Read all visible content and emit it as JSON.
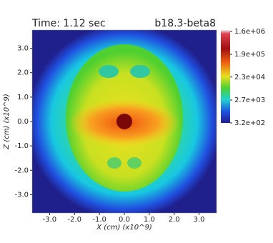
{
  "chart_data": {
    "type": "heatmap",
    "title": "Time: 1.12 sec",
    "subtitle": "b18.3-beta8",
    "x_label": "X (cm) (x10^9)",
    "y_label": "Z (cm) (x10^9)",
    "xlim": [
      -3.7,
      3.7
    ],
    "ylim": [
      -3.75,
      3.75
    ],
    "xticks": [
      {
        "value": -3,
        "label": "-3.0"
      },
      {
        "value": -2,
        "label": "-2.0"
      },
      {
        "value": -1,
        "label": "-1.0"
      },
      {
        "value": 0,
        "label": "0.0"
      },
      {
        "value": 1,
        "label": "1.0"
      },
      {
        "value": 2,
        "label": "2.0"
      },
      {
        "value": 3,
        "label": "3.0"
      }
    ],
    "yticks": [
      {
        "value": -3,
        "label": "-3.0"
      },
      {
        "value": -2,
        "label": "-2.0"
      },
      {
        "value": -1,
        "label": "-1.0"
      },
      {
        "value": 0,
        "label": "0.0"
      },
      {
        "value": 1,
        "label": "1.0"
      },
      {
        "value": 2,
        "label": "2.0"
      },
      {
        "value": 3,
        "label": "3.0"
      }
    ],
    "colorbar_lim": [
      320,
      1600000
    ],
    "colorbar_scale": "log",
    "colorbar_ticks": [
      {
        "value": 1600000,
        "label": "1.6e+06"
      },
      {
        "value": 190000,
        "label": "1.9e+05"
      },
      {
        "value": 23000,
        "label": "2.3e+04"
      },
      {
        "value": 2700,
        "label": "2.7e+03"
      },
      {
        "value": 320,
        "label": "3.2e+02"
      }
    ]
  }
}
